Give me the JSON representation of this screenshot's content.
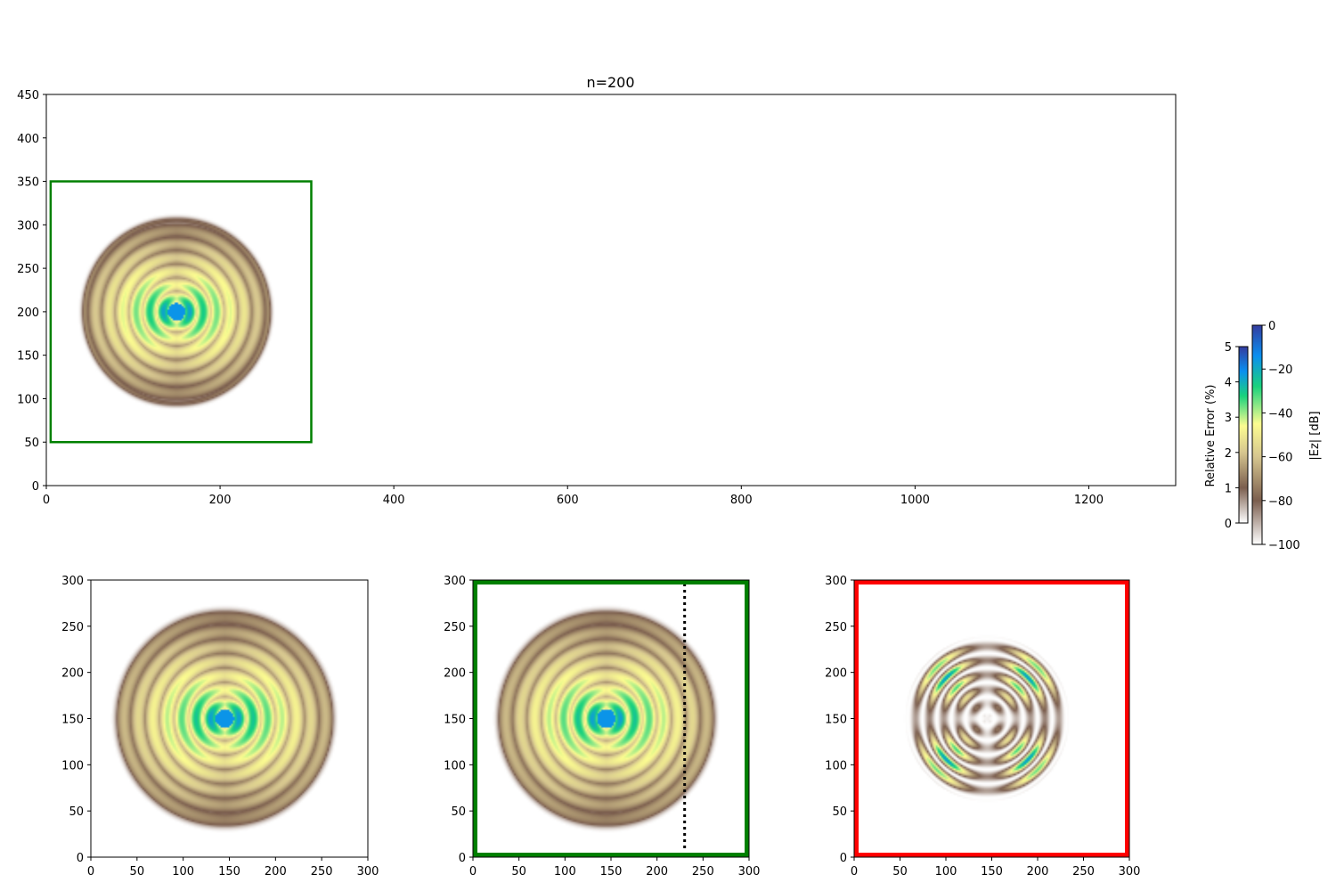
{
  "figure": {
    "title": "n=200"
  },
  "chart_data": [
    {
      "name": "main-domain",
      "type": "heatmap",
      "title": "n=200",
      "xlim": [
        0,
        1300
      ],
      "ylim": [
        0,
        450
      ],
      "xticks": [
        0,
        200,
        400,
        600,
        800,
        1000,
        1200
      ],
      "yticks": [
        0,
        50,
        100,
        150,
        200,
        250,
        300,
        350,
        400,
        450
      ],
      "source": [
        150,
        200
      ],
      "wave_radius": 105,
      "window_box": {
        "x0": 5,
        "x1": 305,
        "y0": 50,
        "y1": 350,
        "color": "#008000"
      },
      "grid": false
    },
    {
      "name": "reference-field",
      "type": "heatmap",
      "xlim": [
        0,
        300
      ],
      "ylim": [
        0,
        300
      ],
      "xticks": [
        0,
        50,
        100,
        150,
        200,
        250,
        300
      ],
      "yticks": [
        0,
        50,
        100,
        150,
        200,
        250,
        300
      ],
      "source": [
        145,
        150
      ],
      "wave_radius": 115,
      "grid": false
    },
    {
      "name": "windowed-field",
      "type": "heatmap",
      "xlim": [
        0,
        300
      ],
      "ylim": [
        0,
        300
      ],
      "xticks": [
        0,
        50,
        100,
        150,
        200,
        250,
        300
      ],
      "yticks": [
        0,
        50,
        100,
        150,
        200,
        250,
        300
      ],
      "source": [
        145,
        150
      ],
      "wave_radius": 115,
      "frame_color": "#008000",
      "dotted_line_x": 230,
      "grid": false
    },
    {
      "name": "relative-error",
      "type": "heatmap",
      "xlim": [
        0,
        300
      ],
      "ylim": [
        0,
        300
      ],
      "xticks": [
        0,
        50,
        100,
        150,
        200,
        250,
        300
      ],
      "yticks": [
        0,
        50,
        100,
        150,
        200,
        250,
        300
      ],
      "source": [
        145,
        150
      ],
      "wave_radius": 90,
      "frame_color": "#ff0000",
      "grid": false
    }
  ],
  "colorbars": {
    "error": {
      "label": "Relative Error (%)",
      "min": 0,
      "max": 5,
      "ticks": [
        0,
        1,
        2,
        3,
        4,
        5
      ]
    },
    "field": {
      "label": "|Ez| [dB]",
      "min": -100,
      "max": 0,
      "ticks": [
        0,
        -20,
        -40,
        -60,
        -80,
        -100
      ]
    }
  },
  "colormap": {
    "name": "terrain_r",
    "stops": [
      "#ffffff",
      "#7b5e4e",
      "#d6c68f",
      "#fcfc90",
      "#1ad27c",
      "#0a8ff0",
      "#343c9f"
    ]
  }
}
